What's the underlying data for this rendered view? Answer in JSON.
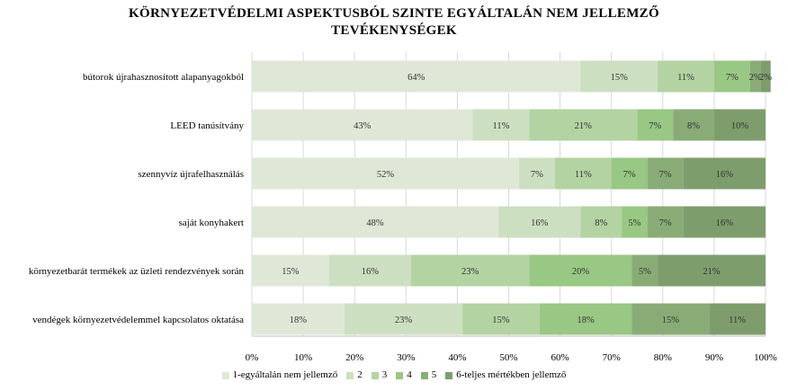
{
  "chart_data": {
    "type": "bar",
    "orientation": "horizontal-stacked-100",
    "title_lines": [
      "KÖRNYEZETVÉDELMI ASPEKTUSBÓL SZINTE EGYÁLTALÁN NEM JELLEMZŐ",
      "TEVÉKENYSÉGEK"
    ],
    "categories": [
      "bútorok újrahasznosított alapanyagokból",
      "LEED tanúsítvány",
      "szennyvíz újrafelhasználás",
      "saját konyhakert",
      "környezetbarát termékek az üzleti rendezvények során",
      "vendégek környezetvédelemmel kapcsolatos oktatása"
    ],
    "series": [
      {
        "name": "1-egyáltalán nem jellemző",
        "color": "#dfe8d7",
        "values": [
          64,
          43,
          52,
          48,
          15,
          18
        ],
        "labels": [
          "64%",
          "43%",
          "52%",
          "48%",
          "15%",
          "18%"
        ]
      },
      {
        "name": "2",
        "color": "#cddfc1",
        "values": [
          15,
          11,
          7,
          16,
          16,
          23
        ],
        "labels": [
          "15%",
          "11%",
          "7%",
          "16%",
          "16%",
          "23%"
        ]
      },
      {
        "name": "3",
        "color": "#b3d3a2",
        "values": [
          11,
          21,
          11,
          8,
          23,
          15
        ],
        "labels": [
          "11%",
          "21%",
          "11%",
          "8%",
          "23%",
          "15%"
        ]
      },
      {
        "name": "4",
        "color": "#99c784",
        "values": [
          7,
          7,
          7,
          5,
          20,
          18
        ],
        "labels": [
          "7%",
          "7%",
          "7%",
          "5%",
          "20%",
          "18%"
        ]
      },
      {
        "name": "5",
        "color": "#89ac77",
        "values": [
          2,
          8,
          7,
          7,
          5,
          15
        ],
        "labels": [
          "2%",
          "8%",
          "7%",
          "7%",
          "5%",
          "15%"
        ]
      },
      {
        "name": "6-teljes mértékben jellemző",
        "color": "#7e9d6d",
        "values": [
          2,
          10,
          16,
          16,
          21,
          11
        ],
        "labels": [
          "2%",
          "10%",
          "16%",
          "16%",
          "21%",
          "11%"
        ]
      }
    ],
    "xlim": [
      0,
      100
    ],
    "x_ticks": [
      "0%",
      "10%",
      "20%",
      "30%",
      "40%",
      "50%",
      "60%",
      "70%",
      "80%",
      "90%",
      "100%"
    ],
    "grid": "vertical",
    "legend": "bottom"
  }
}
